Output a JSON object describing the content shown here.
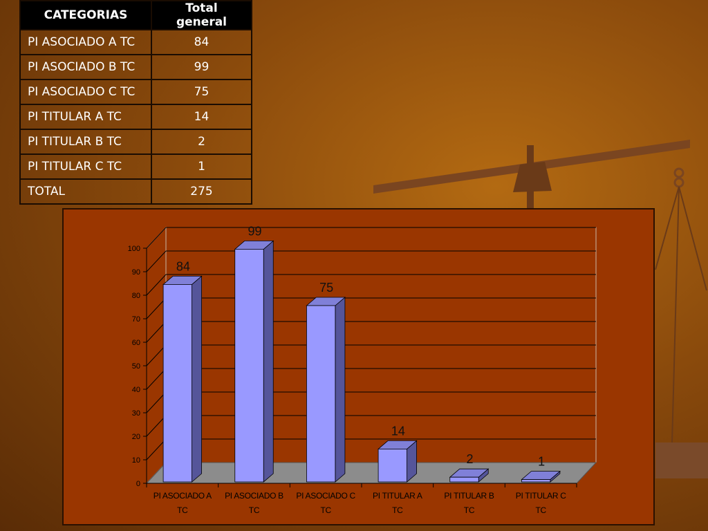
{
  "table": {
    "headers": [
      "CATEGORIAS",
      "Total general"
    ],
    "rows": [
      [
        "PI ASOCIADO A TC",
        "84"
      ],
      [
        "PI ASOCIADO B TC",
        "99"
      ],
      [
        "PI ASOCIADO C TC",
        "75"
      ],
      [
        "PI TITULAR A TC",
        "14"
      ],
      [
        "PI TITULAR B TC",
        "2"
      ],
      [
        "PI TITULAR C TC",
        "1"
      ],
      [
        "TOTAL",
        "275"
      ]
    ]
  },
  "chart_data": {
    "type": "bar",
    "style": "3d-column",
    "categories": [
      [
        "PI ASOCIADO A",
        "TC"
      ],
      [
        "PI ASOCIADO B",
        "TC"
      ],
      [
        "PI ASOCIADO C",
        "TC"
      ],
      [
        "PI TITULAR A",
        "TC"
      ],
      [
        "PI TITULAR B",
        "TC"
      ],
      [
        "PI TITULAR C",
        "TC"
      ]
    ],
    "values": [
      84,
      99,
      75,
      14,
      2,
      1
    ],
    "data_labels": [
      "84",
      "99",
      "75",
      "14",
      "2",
      "1"
    ],
    "ylim": [
      0,
      100
    ],
    "yticks": [
      "0",
      "10",
      "20",
      "30",
      "40",
      "50",
      "60",
      "70",
      "80",
      "90",
      "100"
    ],
    "grid": true,
    "legend": "none",
    "colors": {
      "bar_front": "#9999ff",
      "bar_side": "#55559a",
      "bar_top": "#8080d8",
      "floor": "#8c8c8c",
      "panel": "#9a3600",
      "gridline": "#000000"
    }
  }
}
